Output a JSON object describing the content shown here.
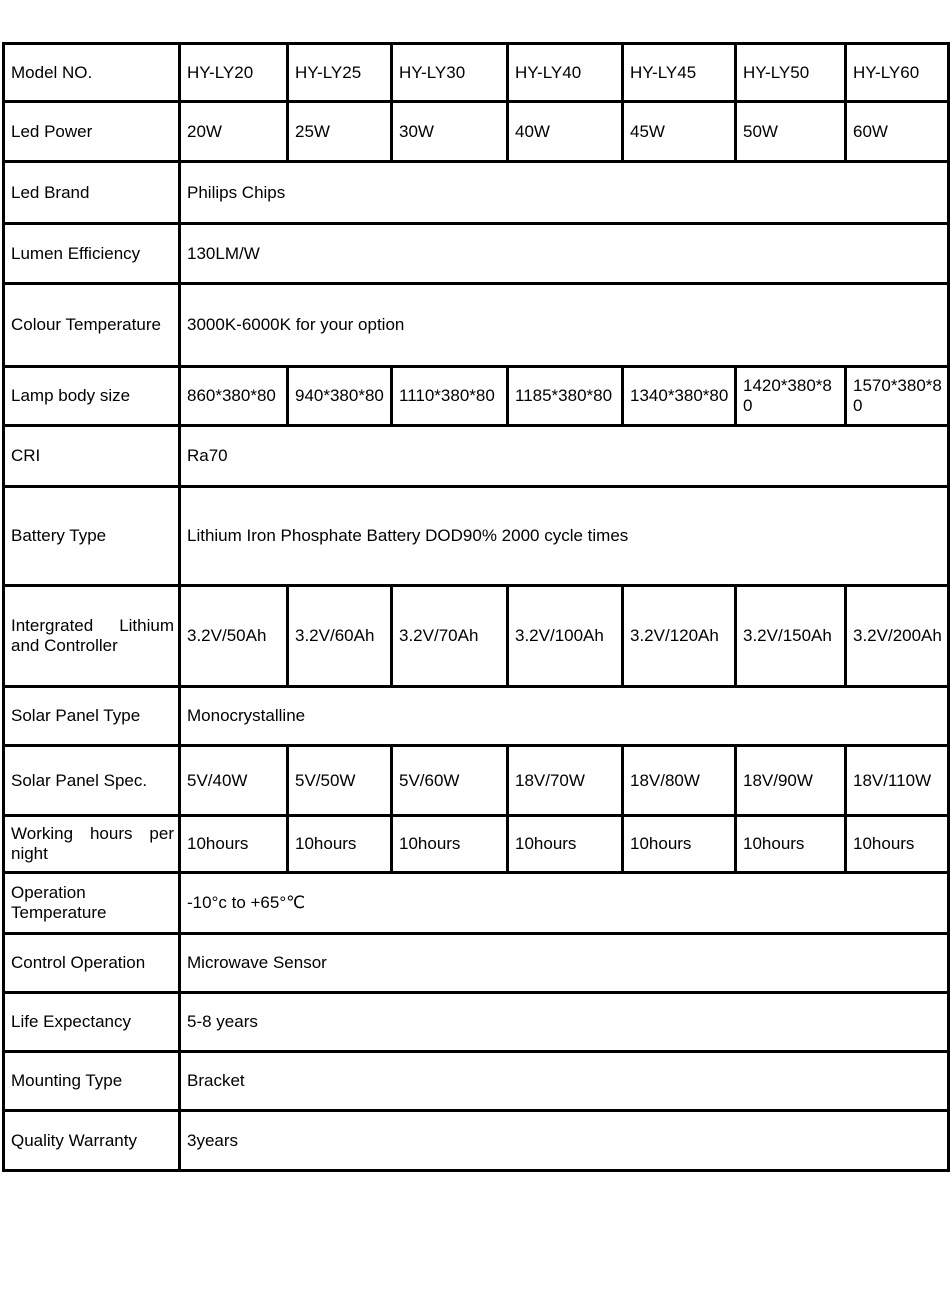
{
  "table": {
    "rows": [
      {
        "label": "Model NO.",
        "values": [
          "HY-LY20",
          "HY-LY25",
          "HY-LY30",
          "HY-LY40",
          "HY-LY45",
          "HY-LY50",
          "HY-LY60"
        ]
      },
      {
        "label": "Led Power",
        "values": [
          "20W",
          "25W",
          "30W",
          "40W",
          "45W",
          "50W",
          "60W"
        ]
      },
      {
        "label": "Led Brand",
        "value": "Philips Chips"
      },
      {
        "label": "Lumen Efficiency",
        "value": "130LM/W"
      },
      {
        "label": "Colour Temperature",
        "value": "3000K-6000K for your option"
      },
      {
        "label": "Lamp body size",
        "values": [
          "860*380*80",
          "940*380*80",
          "1110*380*80",
          "1185*380*80",
          "1340*380*80",
          "1420*380*80",
          "1570*380*80"
        ]
      },
      {
        "label": "CRI",
        "value": "Ra70"
      },
      {
        "label": "Battery Type",
        "value": "Lithium Iron Phosphate Battery DOD90% 2000 cycle times"
      },
      {
        "label": "Intergrated Lithium and Controller",
        "values": [
          "3.2V/50Ah",
          "3.2V/60Ah",
          "3.2V/70Ah",
          "3.2V/100Ah",
          "3.2V/120Ah",
          "3.2V/150Ah",
          "3.2V/200Ah"
        ]
      },
      {
        "label": "Solar Panel Type",
        "value": "Monocrystalline"
      },
      {
        "label": "Solar Panel Spec.",
        "values": [
          "5V/40W",
          "5V/50W",
          "5V/60W",
          "18V/70W",
          "18V/80W",
          "18V/90W",
          "18V/110W"
        ]
      },
      {
        "label": "Working hours per night",
        "values": [
          "10hours",
          "10hours",
          "10hours",
          "10hours",
          "10hours",
          "10hours",
          "10hours"
        ]
      },
      {
        "label": "Operation Temperature",
        "value": "-10°c to +65°℃"
      },
      {
        "label": "Control Operation",
        "value": "Microwave Sensor"
      },
      {
        "label": "Life Expectancy",
        "value": "5-8 years"
      },
      {
        "label": "Mounting Type",
        "value": "Bracket"
      },
      {
        "label": "Quality Warranty",
        "value": "3years"
      }
    ],
    "colors": {
      "border": "#000000",
      "background": "#ffffff",
      "text": "#000000"
    }
  }
}
